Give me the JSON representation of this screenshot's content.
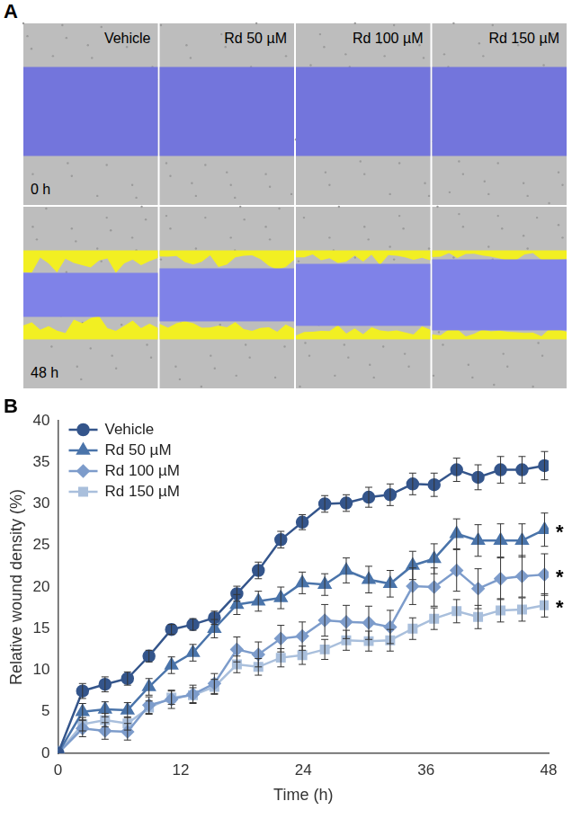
{
  "panel_a": {
    "letter": "A",
    "columns": [
      "Vehicle",
      "Rd 50 µM",
      "Rd 100 µM",
      "Rd 150 µM"
    ],
    "rows": [
      "0 h",
      "48 h"
    ]
  },
  "chart_data": {
    "type": "line",
    "x_label": "Time (h)",
    "y_label": "Relative wound density (%)",
    "x": [
      0,
      2.4,
      4.6,
      6.8,
      8.9,
      11.1,
      13.2,
      15.3,
      17.5,
      19.6,
      21.8,
      23.9,
      26.1,
      28.2,
      30.4,
      32.5,
      34.7,
      36.8,
      39.0,
      41.1,
      43.3,
      45.4,
      47.6
    ],
    "xlim": [
      0,
      48
    ],
    "xticks": [
      0,
      12,
      24,
      36,
      48
    ],
    "ylim": [
      0,
      40
    ],
    "yticks": [
      0,
      5,
      10,
      15,
      20,
      25,
      30,
      35,
      40
    ],
    "grid": false,
    "legend": "upper left",
    "series": [
      {
        "name": "Vehicle",
        "color": "#34558b",
        "marker": "circle",
        "values": [
          0,
          7.5,
          8.3,
          9.0,
          11.7,
          14.9,
          15.5,
          16.3,
          19.2,
          22.0,
          25.7,
          27.8,
          30.0,
          30.1,
          30.8,
          31.1,
          32.4,
          32.3,
          34.1,
          33.2,
          34.1,
          34.1,
          34.6
        ],
        "errors": [
          0,
          0.9,
          0.9,
          0.8,
          0.7,
          0.6,
          0.7,
          0.8,
          0.9,
          1.0,
          1.0,
          0.9,
          1.0,
          1.0,
          1.2,
          1.3,
          1.3,
          1.4,
          1.4,
          1.5,
          1.6,
          1.6,
          1.7
        ]
      },
      {
        "name": "Rd 50 µM",
        "color": "#4a74aa",
        "marker": "triangle",
        "values": [
          0,
          5.0,
          5.3,
          5.2,
          8.0,
          10.6,
          12.1,
          15.0,
          17.9,
          18.3,
          18.7,
          20.5,
          20.3,
          22.0,
          20.9,
          20.4,
          22.6,
          23.4,
          26.4,
          25.6,
          25.6,
          25.6,
          26.9
        ],
        "errors": [
          0,
          1.0,
          0.9,
          0.9,
          1.0,
          1.0,
          1.0,
          1.1,
          1.2,
          1.2,
          1.3,
          1.3,
          1.3,
          1.5,
          1.6,
          1.6,
          1.7,
          1.8,
          1.8,
          1.9,
          2.0,
          2.0,
          2.0
        ]
      },
      {
        "name": "Rd 100 µM",
        "color": "#7d9ccb",
        "marker": "diamond",
        "values": [
          0,
          3.0,
          2.7,
          2.6,
          5.8,
          6.5,
          7.1,
          8.4,
          12.5,
          11.9,
          13.8,
          14.1,
          16.0,
          15.8,
          15.7,
          15.2,
          20.1,
          20.0,
          22.0,
          19.8,
          21.0,
          21.3,
          21.5
        ],
        "errors": [
          0,
          1.0,
          1.0,
          1.0,
          1.0,
          1.1,
          1.1,
          1.2,
          1.5,
          1.5,
          1.6,
          1.7,
          1.9,
          2.0,
          2.0,
          2.0,
          2.2,
          2.3,
          2.5,
          2.4,
          2.5,
          2.5,
          2.5
        ]
      },
      {
        "name": "Rd 150 µM",
        "color": "#a9bfdc",
        "marker": "square",
        "values": [
          0,
          3.5,
          4.0,
          3.6,
          5.5,
          6.7,
          7.0,
          8.0,
          10.7,
          10.4,
          11.5,
          11.8,
          12.5,
          13.6,
          13.5,
          13.6,
          15.0,
          16.2,
          17.1,
          16.4,
          17.2,
          17.3,
          17.8
        ],
        "errors": [
          0,
          0.8,
          0.8,
          0.8,
          0.8,
          0.8,
          0.9,
          0.9,
          1.0,
          1.0,
          1.1,
          1.1,
          1.2,
          1.2,
          1.2,
          1.3,
          1.3,
          1.3,
          1.4,
          1.4,
          1.4,
          1.4,
          1.4
        ]
      }
    ],
    "annotations": [
      {
        "text": "B"
      },
      {
        "text": "*",
        "series": "Rd 50 µM"
      },
      {
        "text": "*",
        "series": "Rd 100 µM"
      },
      {
        "text": "*",
        "series": "Rd 150 µM"
      }
    ]
  }
}
